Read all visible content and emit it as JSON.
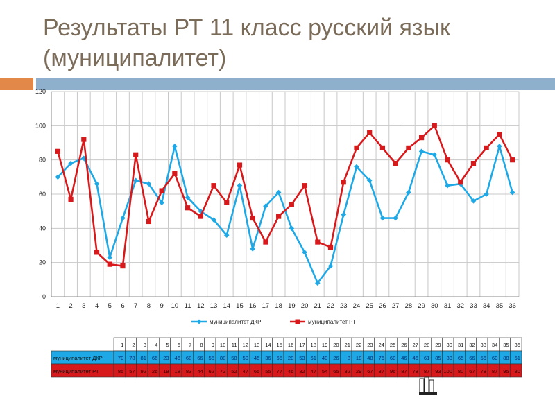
{
  "slide": {
    "title": "Результаты РТ 11 класс русский язык (муниципалитет)"
  },
  "colors": {
    "dkr": "#1ea9e6",
    "rt": "#d7191c",
    "title": "#7b6b59",
    "accent_orange": "#e2894a",
    "accent_blue": "#8eb0cd"
  },
  "chart_data": {
    "type": "line",
    "title": "",
    "xlabel": "",
    "ylabel": "",
    "ylim": [
      0,
      120
    ],
    "y_ticks": [
      0,
      20,
      40,
      60,
      80,
      100,
      120
    ],
    "grid": true,
    "legend_position": "bottom",
    "x": [
      1,
      2,
      3,
      4,
      5,
      6,
      7,
      8,
      9,
      10,
      11,
      12,
      13,
      14,
      15,
      16,
      17,
      18,
      19,
      20,
      21,
      22,
      23,
      24,
      25,
      26,
      27,
      28,
      29,
      30,
      31,
      32,
      33,
      34,
      35,
      36
    ],
    "series": [
      {
        "name": "муниципалитет  ДКР",
        "color": "#1ea9e6",
        "marker": "diamond",
        "values": [
          70,
          78,
          81,
          66,
          23,
          46,
          68,
          66,
          55,
          88,
          58,
          50,
          45,
          36,
          65,
          28,
          53,
          61,
          40,
          26,
          8,
          18,
          48,
          76,
          68,
          46,
          46,
          61,
          85,
          83,
          65,
          66,
          56,
          60,
          88,
          61
        ]
      },
      {
        "name": "муниципалитет  РТ",
        "color": "#d7191c",
        "marker": "square",
        "values": [
          85,
          57,
          92,
          26,
          19,
          18,
          83,
          44,
          62,
          72,
          52,
          47,
          65,
          55,
          77,
          46,
          32,
          47,
          54,
          65,
          32,
          29,
          67,
          87,
          96,
          87,
          78,
          87,
          93,
          100,
          80,
          67,
          78,
          87,
          95,
          80
        ]
      }
    ],
    "table": {
      "header": [
        "1",
        "2",
        "3",
        "4",
        "5",
        "6",
        "7",
        "8",
        "9",
        "10",
        "11",
        "12",
        "13",
        "14",
        "15",
        "16",
        "17",
        "18",
        "19",
        "20",
        "21",
        "22",
        "23",
        "24",
        "25",
        "26",
        "27",
        "28",
        "29",
        "30",
        "31",
        "32",
        "33",
        "34",
        "35",
        "36"
      ],
      "rows": [
        {
          "label": "муниципалитет ДКР",
          "values": [
            70,
            78,
            81,
            66,
            23,
            46,
            68,
            66,
            55,
            88,
            58,
            50,
            45,
            36,
            65,
            28,
            53,
            61,
            40,
            26,
            8,
            18,
            48,
            76,
            68,
            46,
            46,
            61,
            85,
            83,
            65,
            66,
            56,
            60,
            88,
            61
          ]
        },
        {
          "label": "муниципалитет РТ",
          "values": [
            85,
            57,
            92,
            26,
            19,
            18,
            83,
            44,
            62,
            72,
            52,
            47,
            65,
            55,
            77,
            46,
            32,
            47,
            54,
            65,
            32,
            29,
            67,
            87,
            96,
            87,
            78,
            87,
            93,
            100,
            80,
            67,
            78,
            87,
            95,
            80
          ]
        }
      ]
    }
  }
}
